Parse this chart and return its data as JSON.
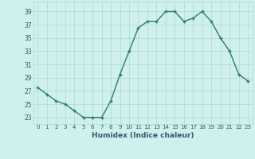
{
  "x": [
    0,
    1,
    2,
    3,
    4,
    5,
    6,
    7,
    8,
    9,
    10,
    11,
    12,
    13,
    14,
    15,
    16,
    17,
    18,
    19,
    20,
    21,
    22,
    23
  ],
  "y": [
    27.5,
    26.5,
    25.5,
    25.0,
    24.0,
    23.0,
    23.0,
    23.0,
    25.5,
    29.5,
    33.0,
    36.5,
    37.5,
    37.5,
    39.0,
    39.0,
    37.5,
    38.0,
    39.0,
    37.5,
    35.0,
    33.0,
    29.5,
    28.5
  ],
  "xlabel": "Humidex (Indice chaleur)",
  "ylim": [
    22,
    40.5
  ],
  "xlim": [
    -0.5,
    23.5
  ],
  "yticks": [
    23,
    25,
    27,
    29,
    31,
    33,
    35,
    37,
    39
  ],
  "xticks": [
    0,
    1,
    2,
    3,
    4,
    5,
    6,
    7,
    8,
    9,
    10,
    11,
    12,
    13,
    14,
    15,
    16,
    17,
    18,
    19,
    20,
    21,
    22,
    23
  ],
  "line_color": "#2e7d6e",
  "marker_color": "#2e7d6e",
  "bg_color": "#cff0ec",
  "grid_color": "#b0d8d3",
  "text_color": "#2e5a6e",
  "line_width": 1.0,
  "marker_size": 2.5
}
